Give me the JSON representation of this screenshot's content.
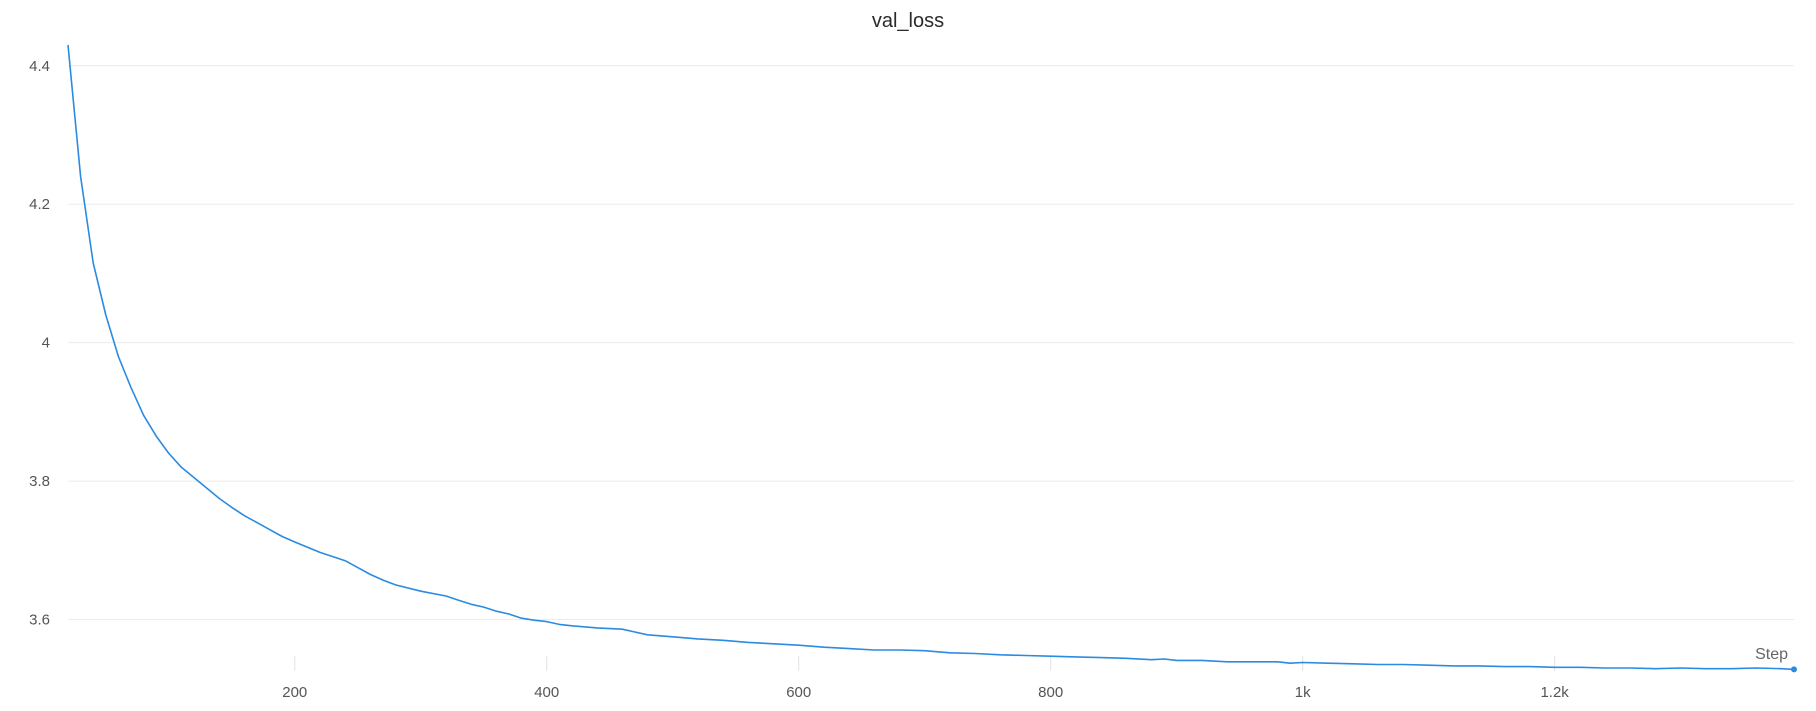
{
  "chart_data": {
    "type": "line",
    "title": "val_loss",
    "xlabel": "Step",
    "ylabel": "",
    "xlim": [
      20,
      1390
    ],
    "ylim": [
      3.53,
      4.43
    ],
    "grid": true,
    "x_ticks": [
      200,
      400,
      600,
      800,
      1000,
      1200
    ],
    "x_tick_labels": [
      "200",
      "400",
      "600",
      "800",
      "1k",
      "1.2k"
    ],
    "y_ticks": [
      3.6,
      3.8,
      4.0,
      4.2,
      4.4
    ],
    "y_tick_labels": [
      "3.6",
      "3.8",
      "4",
      "4.2",
      "4.4"
    ],
    "colors": {
      "line": "#2b8be0",
      "grid": "#ececec"
    },
    "series": [
      {
        "x": [
          20,
          30,
          40,
          50,
          60,
          70,
          80,
          90,
          100,
          110,
          120,
          130,
          140,
          150,
          160,
          170,
          180,
          190,
          200,
          220,
          240,
          250,
          260,
          270,
          280,
          300,
          320,
          330,
          340,
          350,
          360,
          370,
          380,
          390,
          400,
          410,
          420,
          440,
          460,
          470,
          480,
          500,
          520,
          540,
          560,
          580,
          600,
          620,
          640,
          660,
          680,
          700,
          720,
          740,
          760,
          780,
          800,
          820,
          840,
          860,
          880,
          890,
          900,
          920,
          940,
          960,
          980,
          990,
          1000,
          1020,
          1040,
          1060,
          1080,
          1100,
          1120,
          1140,
          1160,
          1180,
          1200,
          1220,
          1240,
          1260,
          1280,
          1300,
          1320,
          1340,
          1360,
          1380,
          1390
        ],
        "y": [
          4.43,
          4.24,
          4.115,
          4.04,
          3.98,
          3.935,
          3.895,
          3.865,
          3.84,
          3.82,
          3.805,
          3.79,
          3.775,
          3.762,
          3.75,
          3.74,
          3.73,
          3.72,
          3.712,
          3.697,
          3.685,
          3.675,
          3.665,
          3.657,
          3.65,
          3.641,
          3.634,
          3.628,
          3.622,
          3.618,
          3.612,
          3.608,
          3.602,
          3.599,
          3.597,
          3.593,
          3.591,
          3.588,
          3.586,
          3.582,
          3.578,
          3.575,
          3.572,
          3.57,
          3.567,
          3.565,
          3.563,
          3.56,
          3.558,
          3.556,
          3.556,
          3.555,
          3.552,
          3.551,
          3.549,
          3.548,
          3.547,
          3.546,
          3.545,
          3.544,
          3.542,
          3.543,
          3.541,
          3.541,
          3.539,
          3.539,
          3.539,
          3.537,
          3.538,
          3.537,
          3.536,
          3.535,
          3.535,
          3.534,
          3.533,
          3.533,
          3.532,
          3.532,
          3.531,
          3.531,
          3.53,
          3.53,
          3.529,
          3.53,
          3.529,
          3.529,
          3.53,
          3.529,
          3.528
        ]
      }
    ]
  }
}
